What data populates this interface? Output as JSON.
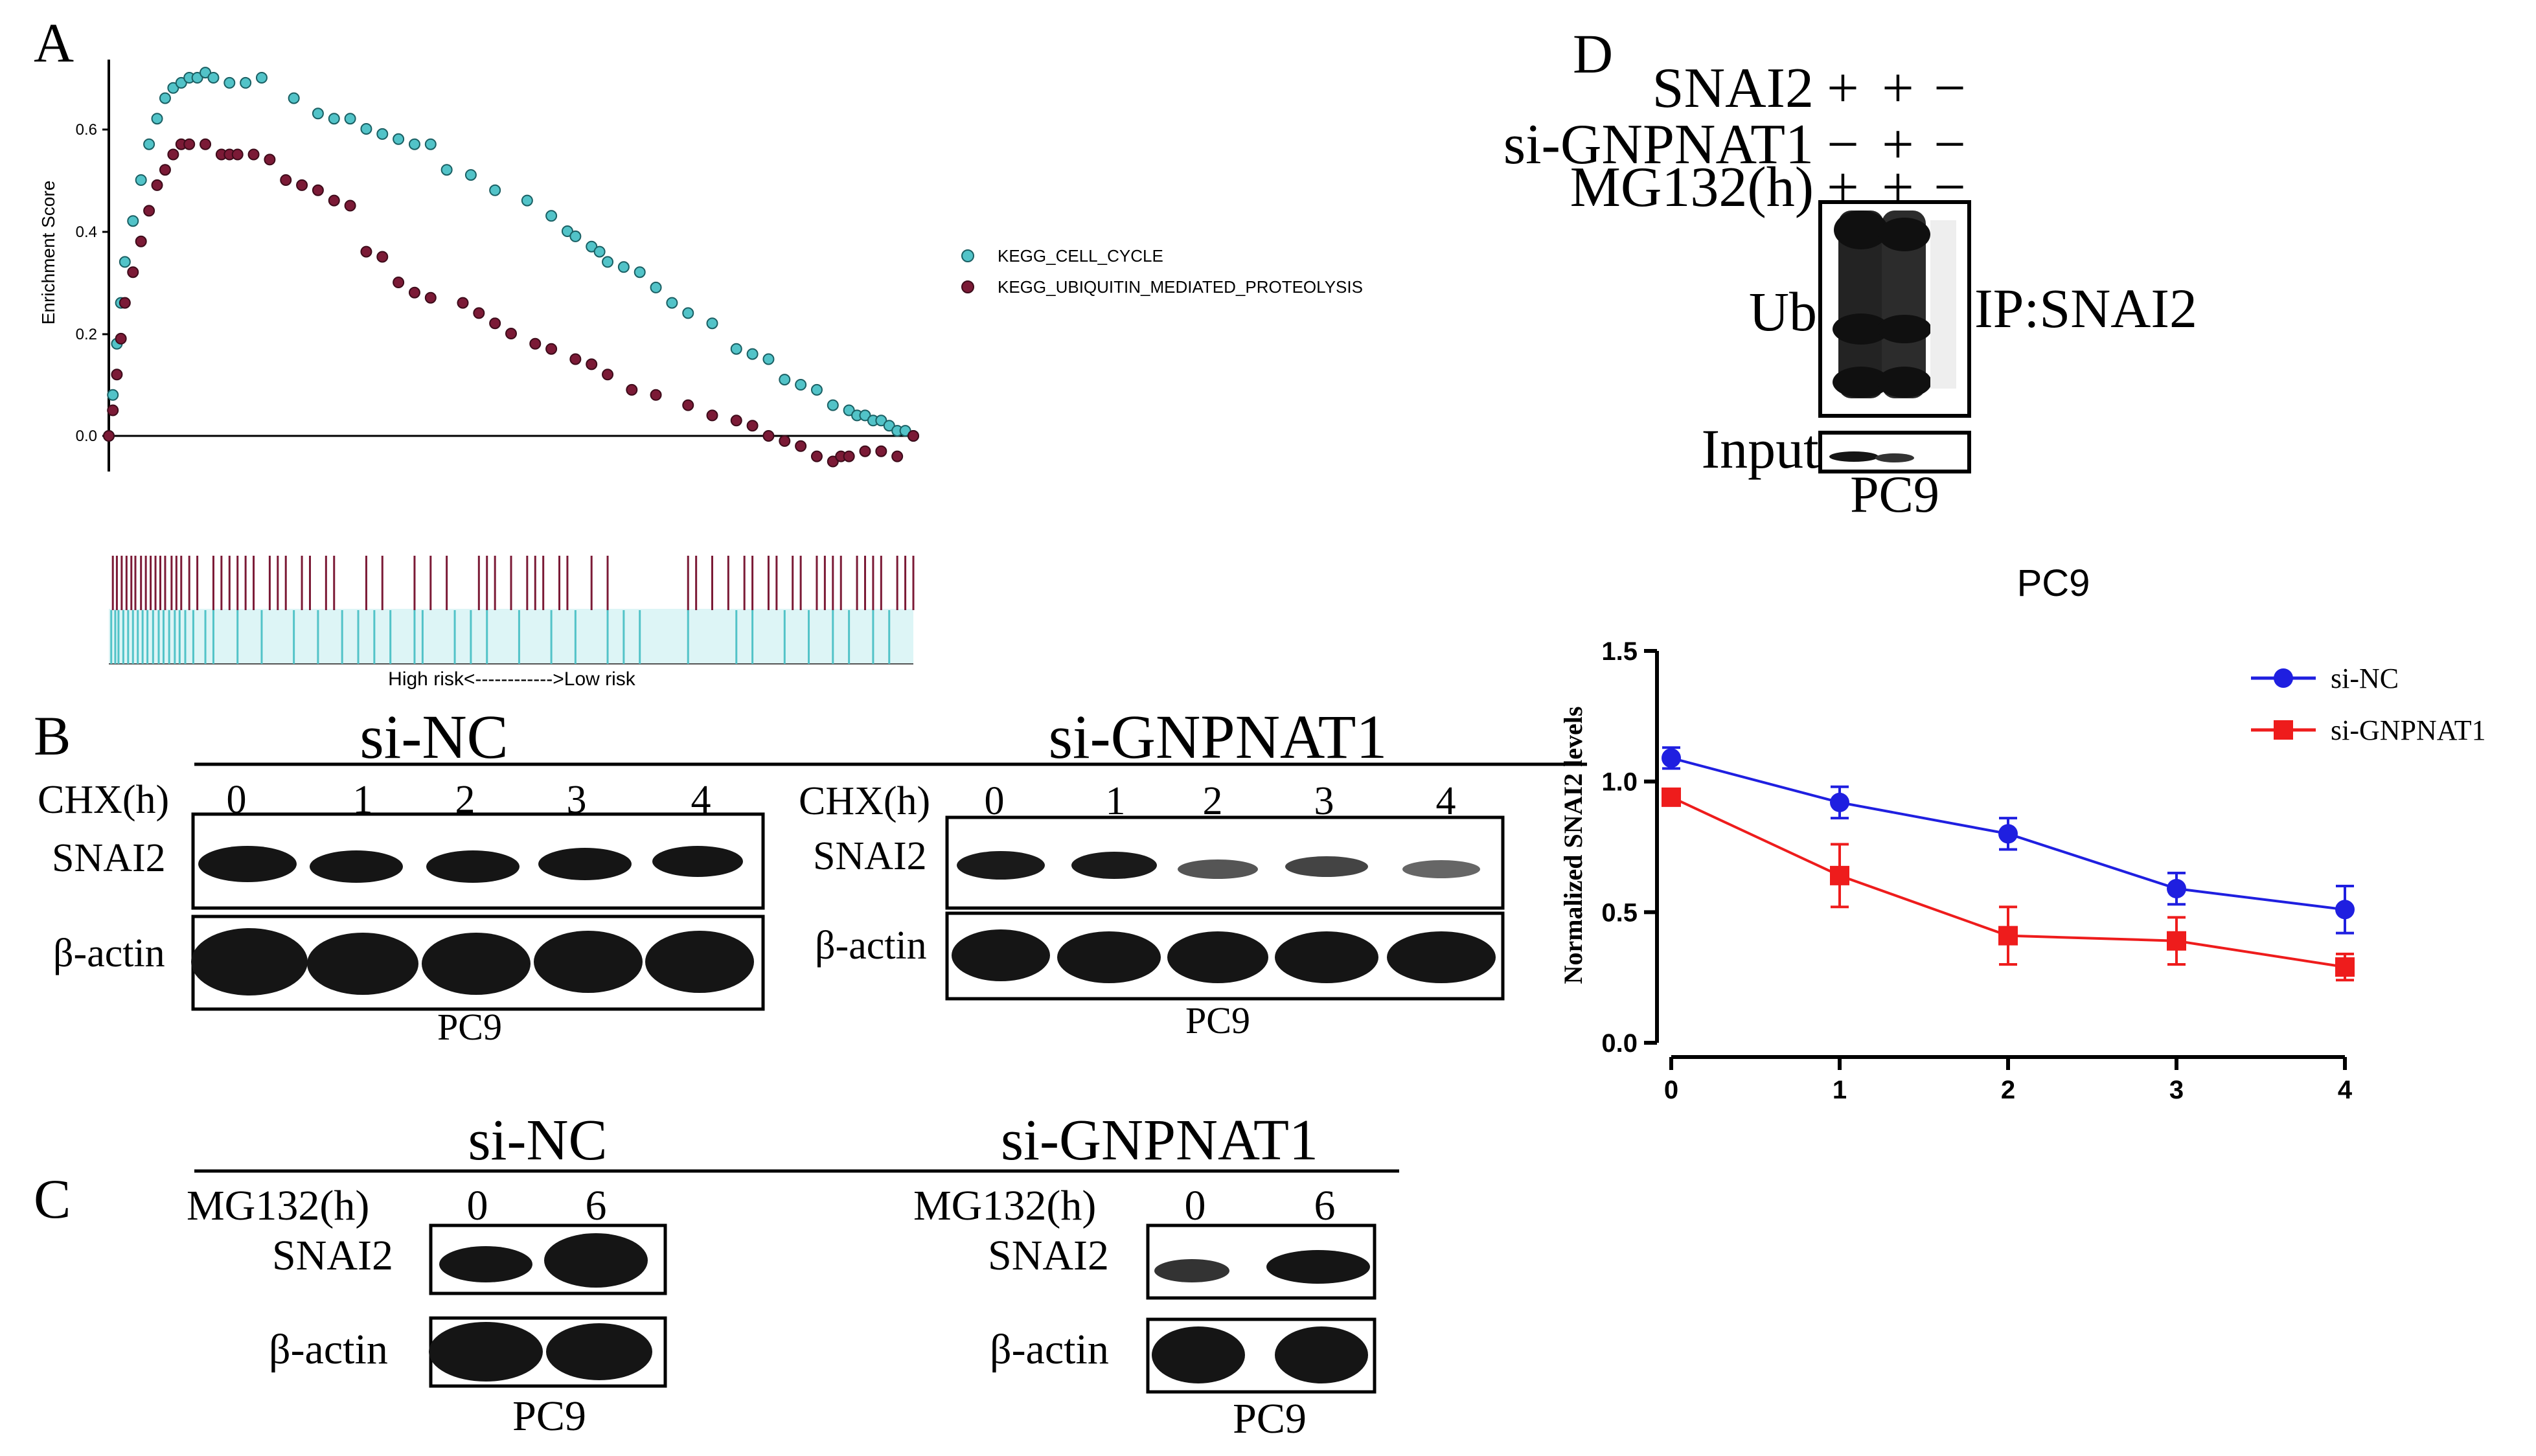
{
  "panel_labels": {
    "a": "A",
    "b": "B",
    "c": "C",
    "d": "D"
  },
  "colors": {
    "cell_cycle": "#52c3c8",
    "ubiquitin": "#7b1a36",
    "si_nc": "#1f1fe0",
    "si_gnpnat1": "#ee1c1c",
    "blot_band": "#151515"
  },
  "panel_a": {
    "ylabel": "Enrichment Score",
    "xlabel": "High risk<------------>Low risk",
    "legend": [
      "KEGG_CELL_CYCLE",
      "KEGG_UBIQUITIN_MEDIATED_PROTEOLYSIS"
    ],
    "yticks": [
      "0.0",
      "0.2",
      "0.4",
      "0.6"
    ]
  },
  "panel_b": {
    "left_group": "si-NC",
    "right_group": "si-GNPNAT1",
    "cond_label": "CHX(h)",
    "timepoints": [
      "0",
      "1",
      "2",
      "3",
      "4"
    ],
    "row_labels": [
      "SNAI2",
      "β-actin"
    ],
    "cell_line": "PC9"
  },
  "panel_c": {
    "left_group": "si-NC",
    "right_group": "si-GNPNAT1",
    "cond_label": "MG132(h)",
    "timepoints": [
      "0",
      "6"
    ],
    "row_labels": [
      "SNAI2",
      "β-actin"
    ],
    "cell_line": "PC9"
  },
  "panel_d": {
    "treatments": [
      {
        "label": "SNAI2",
        "signs": [
          "+",
          "+",
          "−"
        ]
      },
      {
        "label": "si-GNPNAT1",
        "signs": [
          "−",
          "+",
          "−"
        ]
      },
      {
        "label": "MG132(h)",
        "signs": [
          "+",
          "+",
          "−"
        ]
      }
    ],
    "ub_label": "Ub",
    "ip_label": "IP:SNAI2",
    "input_label": "Input",
    "cell_line": "PC9"
  },
  "chart_data": [
    {
      "type": "scatter",
      "title": "",
      "xlabel": "High risk<------------>Low risk",
      "ylabel": "Enrichment Score",
      "ylim": [
        -0.06,
        0.74
      ],
      "xlim": [
        0,
        1
      ],
      "yticks": [
        0.0,
        0.2,
        0.4,
        0.6
      ],
      "legend_position": "right",
      "series": [
        {
          "name": "KEGG_CELL_CYCLE",
          "x": [
            0.0,
            0.005,
            0.01,
            0.015,
            0.02,
            0.03,
            0.04,
            0.05,
            0.06,
            0.07,
            0.08,
            0.09,
            0.1,
            0.11,
            0.12,
            0.13,
            0.15,
            0.17,
            0.19,
            0.23,
            0.26,
            0.28,
            0.3,
            0.32,
            0.34,
            0.36,
            0.38,
            0.4,
            0.42,
            0.45,
            0.48,
            0.52,
            0.55,
            0.57,
            0.58,
            0.6,
            0.61,
            0.62,
            0.64,
            0.66,
            0.68,
            0.7,
            0.72,
            0.75,
            0.78,
            0.8,
            0.82,
            0.84,
            0.86,
            0.88,
            0.9,
            0.92,
            0.93,
            0.94,
            0.95,
            0.96,
            0.97,
            0.98,
            0.99,
            1.0
          ],
          "y": [
            0.0,
            0.08,
            0.18,
            0.26,
            0.34,
            0.42,
            0.5,
            0.57,
            0.62,
            0.66,
            0.68,
            0.69,
            0.7,
            0.7,
            0.71,
            0.7,
            0.69,
            0.69,
            0.7,
            0.66,
            0.63,
            0.62,
            0.62,
            0.6,
            0.59,
            0.58,
            0.57,
            0.57,
            0.52,
            0.51,
            0.48,
            0.46,
            0.43,
            0.4,
            0.39,
            0.37,
            0.36,
            0.34,
            0.33,
            0.32,
            0.29,
            0.26,
            0.24,
            0.22,
            0.17,
            0.16,
            0.15,
            0.11,
            0.1,
            0.09,
            0.06,
            0.05,
            0.04,
            0.04,
            0.03,
            0.03,
            0.02,
            0.01,
            0.01,
            0.0
          ]
        },
        {
          "name": "KEGG_UBIQUITIN_MEDIATED_PROTEOLYSIS",
          "x": [
            0.0,
            0.005,
            0.01,
            0.015,
            0.02,
            0.03,
            0.04,
            0.05,
            0.06,
            0.07,
            0.08,
            0.09,
            0.1,
            0.12,
            0.14,
            0.15,
            0.16,
            0.18,
            0.2,
            0.22,
            0.24,
            0.26,
            0.28,
            0.3,
            0.32,
            0.34,
            0.36,
            0.38,
            0.4,
            0.44,
            0.46,
            0.48,
            0.5,
            0.53,
            0.55,
            0.58,
            0.6,
            0.62,
            0.65,
            0.68,
            0.72,
            0.75,
            0.78,
            0.8,
            0.82,
            0.84,
            0.86,
            0.88,
            0.9,
            0.91,
            0.92,
            0.94,
            0.96,
            0.98,
            1.0
          ],
          "y": [
            0.0,
            0.05,
            0.12,
            0.19,
            0.26,
            0.32,
            0.38,
            0.44,
            0.49,
            0.52,
            0.55,
            0.57,
            0.57,
            0.57,
            0.55,
            0.55,
            0.55,
            0.55,
            0.54,
            0.5,
            0.49,
            0.48,
            0.46,
            0.45,
            0.36,
            0.35,
            0.3,
            0.28,
            0.27,
            0.26,
            0.24,
            0.22,
            0.2,
            0.18,
            0.17,
            0.15,
            0.14,
            0.12,
            0.09,
            0.08,
            0.06,
            0.04,
            0.03,
            0.02,
            0.0,
            -0.01,
            -0.02,
            -0.04,
            -0.05,
            -0.04,
            -0.04,
            -0.03,
            -0.03,
            -0.04,
            0.0
          ]
        }
      ],
      "rug": {
        "KEGG_UBIQUITIN_MEDIATED_PROTEOLYSIS": [
          0.005,
          0.01,
          0.016,
          0.022,
          0.028,
          0.033,
          0.04,
          0.046,
          0.052,
          0.058,
          0.064,
          0.07,
          0.078,
          0.084,
          0.09,
          0.1,
          0.11,
          0.13,
          0.14,
          0.15,
          0.16,
          0.17,
          0.18,
          0.2,
          0.21,
          0.22,
          0.24,
          0.25,
          0.27,
          0.28,
          0.32,
          0.34,
          0.38,
          0.4,
          0.42,
          0.46,
          0.47,
          0.48,
          0.5,
          0.52,
          0.53,
          0.54,
          0.56,
          0.57,
          0.6,
          0.62,
          0.72,
          0.73,
          0.75,
          0.77,
          0.79,
          0.8,
          0.82,
          0.83,
          0.85,
          0.86,
          0.88,
          0.89,
          0.9,
          0.91,
          0.93,
          0.94,
          0.95,
          0.96,
          0.98,
          0.99,
          1.0
        ],
        "KEGG_CELL_CYCLE": [
          0.003,
          0.008,
          0.012,
          0.018,
          0.024,
          0.03,
          0.036,
          0.042,
          0.048,
          0.055,
          0.062,
          0.068,
          0.075,
          0.082,
          0.088,
          0.095,
          0.105,
          0.12,
          0.13,
          0.16,
          0.19,
          0.23,
          0.26,
          0.29,
          0.31,
          0.33,
          0.35,
          0.38,
          0.39,
          0.43,
          0.45,
          0.47,
          0.51,
          0.55,
          0.58,
          0.62,
          0.64,
          0.66,
          0.72,
          0.78,
          0.8,
          0.84,
          0.87,
          0.9,
          0.92,
          0.95,
          0.97
        ]
      }
    },
    {
      "type": "line",
      "title": "PC9",
      "xlabel": "",
      "ylabel": "Normalized SNAI2 levels",
      "ylim": [
        0,
        1.5
      ],
      "xlim": [
        0,
        4
      ],
      "yticks": [
        0.0,
        0.5,
        1.0,
        1.5
      ],
      "legend_position": "top-right",
      "x": [
        0,
        1,
        2,
        3,
        4
      ],
      "series": [
        {
          "name": "si-NC",
          "marker": "circle",
          "values": [
            1.09,
            0.92,
            0.8,
            0.59,
            0.51
          ],
          "errors": [
            0.04,
            0.06,
            0.06,
            0.06,
            0.09
          ]
        },
        {
          "name": "si-GNPNAT1",
          "marker": "square",
          "values": [
            0.94,
            0.64,
            0.41,
            0.39,
            0.29
          ],
          "errors": [
            0.03,
            0.12,
            0.11,
            0.09,
            0.05
          ]
        }
      ]
    }
  ]
}
